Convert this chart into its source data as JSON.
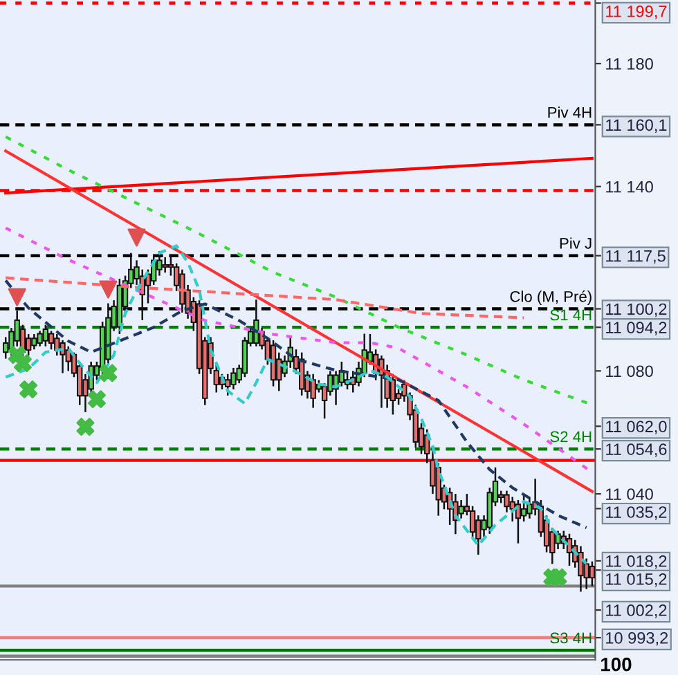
{
  "chart_data": {
    "type": "candlestick",
    "categories": [
      null,
      null,
      null,
      null,
      null,
      null,
      null,
      null,
      null,
      null,
      null,
      null,
      null,
      null,
      null,
      null,
      null,
      null,
      null,
      null,
      null,
      null,
      null,
      null,
      null,
      null,
      null,
      null,
      null,
      null,
      null,
      null,
      null,
      null,
      null,
      null,
      null,
      null,
      null,
      null,
      null,
      null,
      null,
      null,
      null,
      null,
      null,
      null,
      null,
      null,
      null,
      null,
      null,
      null,
      null,
      null,
      null,
      null,
      null,
      null,
      null,
      null,
      null,
      null,
      null,
      null,
      null,
      null,
      null,
      null,
      null,
      null,
      null,
      null,
      null,
      null,
      null,
      null,
      null,
      null,
      null,
      null,
      null,
      null,
      null,
      null,
      null,
      null,
      null,
      null,
      null,
      null,
      null,
      null,
      null,
      null,
      null,
      null,
      null,
      null,
      null,
      null,
      null,
      null
    ],
    "ohlc": [
      [
        11086.1,
        11091,
        11084,
        11089.1
      ],
      [
        11086.8,
        11094,
        11085,
        11092.8
      ],
      [
        11089.8,
        11099.6,
        11088,
        11096.5
      ],
      [
        11093.6,
        11095,
        11084,
        11086.1
      ],
      [
        11090.6,
        11092,
        11085,
        11086.8
      ],
      [
        11088.3,
        11092,
        11087,
        11090.6
      ],
      [
        11089.1,
        11093,
        11088,
        11092.1
      ],
      [
        11089.8,
        11095,
        11088,
        11093.6
      ],
      [
        11092.1,
        11093,
        11087,
        11089.1
      ],
      [
        11090.6,
        11092,
        11085,
        11086.8
      ],
      [
        11089.1,
        11090,
        11079.3,
        11085.3
      ],
      [
        11086.8,
        11088,
        11080,
        11083.1
      ],
      [
        11085.3,
        11086,
        11078,
        11079.3
      ],
      [
        11081.6,
        11083,
        11068.9,
        11071.9
      ],
      [
        11077.1,
        11079,
        11066.6,
        11071.9
      ],
      [
        11074.1,
        11083,
        11072,
        11081.6
      ],
      [
        11078.6,
        11083,
        11077,
        11081.6
      ],
      [
        11080.8,
        11096,
        11079,
        11094.3
      ],
      [
        11083.8,
        11102,
        11082,
        11097.3
      ],
      [
        11094.3,
        11103,
        11093,
        11101.0
      ],
      [
        11094.3,
        11110,
        11092,
        11107.8
      ],
      [
        11101.0,
        11111,
        11099,
        11109.3
      ],
      [
        11108.5,
        11118.4,
        11107,
        11113.0
      ],
      [
        11110.0,
        11116,
        11108,
        11113.8
      ],
      [
        11110.8,
        11113,
        11096.5,
        11104.8
      ],
      [
        11111.5,
        11113,
        11102,
        11107.8
      ],
      [
        11109.3,
        11118,
        11108,
        11116.0
      ],
      [
        11113.0,
        11119,
        11111,
        11116.0
      ],
      [
        11114.5,
        11117,
        11112,
        11113.8
      ],
      [
        11114.5,
        11118,
        11111,
        11113.8
      ],
      [
        11113.8,
        11115,
        11106,
        11107.8
      ],
      [
        11111.5,
        11113,
        11099,
        11101.8
      ],
      [
        11106.3,
        11108,
        11097,
        11098.8
      ],
      [
        11102.6,
        11104,
        11093,
        11095.8
      ],
      [
        11101.8,
        11103,
        11079,
        11080.8
      ],
      [
        11089.8,
        11091,
        11068.9,
        11071.1
      ],
      [
        11089.1,
        11091,
        11079,
        11080.8
      ],
      [
        11080.1,
        11082,
        11073,
        11075.6
      ],
      [
        11077.9,
        11079,
        11074,
        11075.6
      ],
      [
        11077.1,
        11079,
        11072,
        11074.9
      ],
      [
        11075.6,
        11081,
        11074,
        11079.3
      ],
      [
        11077.1,
        11082,
        11076,
        11080.8
      ],
      [
        11079.3,
        11091,
        11078,
        11089.8
      ],
      [
        11089.1,
        11094,
        11088,
        11092.8
      ],
      [
        11089.1,
        11103.2,
        11088,
        11096.5
      ],
      [
        11092.8,
        11094,
        11087,
        11088.3
      ],
      [
        11089.8,
        11091,
        11082,
        11083.8
      ],
      [
        11088.3,
        11090,
        11075,
        11077.1
      ],
      [
        11083.8,
        11086,
        11073.5,
        11077.1
      ],
      [
        11079.3,
        11085,
        11078,
        11083.1
      ],
      [
        11083.1,
        11091,
        11081,
        11087.6
      ],
      [
        11084.6,
        11087,
        11079,
        11080.8
      ],
      [
        11083.8,
        11086,
        11072,
        11074.1
      ],
      [
        11078.6,
        11080,
        11071,
        11073.4
      ],
      [
        11077.1,
        11079,
        11068,
        11071.1
      ],
      [
        11074.1,
        11077,
        11073,
        11075.6
      ],
      [
        11074.9,
        11076,
        11064.5,
        11070.4
      ],
      [
        11073.4,
        11080,
        11072,
        11078.6
      ],
      [
        11074.1,
        11080,
        11068.9,
        11078.6
      ],
      [
        11076.3,
        11083,
        11075,
        11080.1
      ],
      [
        11075.6,
        11080,
        11074,
        11077.1
      ],
      [
        11077.9,
        11080,
        11073,
        11075.6
      ],
      [
        11076.3,
        11083,
        11075,
        11080.8
      ],
      [
        11079.3,
        11092.1,
        11078,
        11086.8
      ],
      [
        11083.1,
        11092,
        11082,
        11086.1
      ],
      [
        11085.3,
        11087,
        11077,
        11079.3
      ],
      [
        11083.8,
        11085,
        11068,
        11078.6
      ],
      [
        11080.1,
        11082,
        11068,
        11071.1
      ],
      [
        11077.1,
        11079,
        11065.8,
        11070.4
      ],
      [
        11072.6,
        11074,
        11069,
        11071.1
      ],
      [
        11075.6,
        11077,
        11070,
        11071.9
      ],
      [
        11071.9,
        11073,
        11064,
        11065.8
      ],
      [
        11067.3,
        11069,
        11055,
        11056.9
      ],
      [
        11061.3,
        11063,
        11053,
        11055.4
      ],
      [
        11059.1,
        11061,
        11050,
        11053.1
      ],
      [
        11050.9,
        11054,
        11040,
        11042.6
      ],
      [
        11048.6,
        11050,
        11032.9,
        11038.1
      ],
      [
        11041.9,
        11043,
        11035,
        11037.4
      ],
      [
        11040.4,
        11042,
        11029.9,
        11035.1
      ],
      [
        11037.4,
        11040,
        11026.9,
        11031.4
      ],
      [
        11033.6,
        11038,
        11032,
        11035.9
      ],
      [
        11035.9,
        11040,
        11033,
        11034.4
      ],
      [
        11034.4,
        11036,
        11026,
        11027.6
      ],
      [
        11031.4,
        11033,
        11020.2,
        11025.4
      ],
      [
        11028.4,
        11033,
        11026,
        11031.4
      ],
      [
        11029.1,
        11042,
        11027,
        11040.4
      ],
      [
        11037.4,
        11048.6,
        11036,
        11044.1
      ],
      [
        11039.7,
        11041,
        11037,
        11038.9
      ],
      [
        11039.7,
        11041,
        11034,
        11035.9
      ],
      [
        11037.4,
        11039,
        11031,
        11035.1
      ],
      [
        11036.6,
        11038,
        11023.9,
        11032.1
      ],
      [
        11032.9,
        11040,
        11031,
        11035.1
      ],
      [
        11033.6,
        11039,
        11032,
        11036.6
      ],
      [
        11037.4,
        11044.9,
        11033,
        11035.1
      ],
      [
        11035.9,
        11038,
        11026,
        11027.6
      ],
      [
        11031.4,
        11033,
        11021,
        11023.1
      ],
      [
        11027.6,
        11029,
        11017.2,
        11020.9
      ],
      [
        11023.9,
        11028,
        11022,
        11026.9
      ],
      [
        11026.2,
        11028,
        11022,
        11023.9
      ],
      [
        11025.4,
        11027,
        11016.6,
        11020.9
      ],
      [
        11023.1,
        11025,
        11016,
        11017.9
      ],
      [
        11020.9,
        11023,
        11008.2,
        11013.4
      ],
      [
        11017.2,
        11019,
        11009,
        11012.7
      ],
      [
        11016.4,
        11018,
        11010,
        11012.7
      ]
    ],
    "colors": [
      "#56d356",
      "#56d356",
      "#56d356",
      "#e46f6f",
      "#e46f6f",
      "#56d356",
      "#56d356",
      "#56d356",
      "#e46f6f",
      "#e46f6f",
      "#e46f6f",
      "#e46f6f",
      "#e46f6f",
      "#e46f6f",
      "#e46f6f",
      "#56d356",
      "#56d356",
      "#56d356",
      "#56d356",
      "#56d356",
      "#56d356",
      "#56d356",
      "#56d356",
      "#56d356",
      "#e46f6f",
      "#e46f6f",
      "#56d356",
      "#56d356",
      "#e46f6f",
      "#e46f6f",
      "#e46f6f",
      "#e46f6f",
      "#e46f6f",
      "#e46f6f",
      "#e46f6f",
      "#e46f6f",
      "#e46f6f",
      "#e46f6f",
      "#e46f6f",
      "#e46f6f",
      "#56d356",
      "#56d356",
      "#56d356",
      "#56d356",
      "#56d356",
      "#e46f6f",
      "#e46f6f",
      "#e46f6f",
      "#e46f6f",
      "#56d356",
      "#56d356",
      "#e46f6f",
      "#e46f6f",
      "#e46f6f",
      "#e46f6f",
      "#56d356",
      "#e46f6f",
      "#56d356",
      "#56d356",
      "#56d356",
      "#56d356",
      "#e46f6f",
      "#56d356",
      "#56d356",
      "#56d356",
      "#e46f6f",
      "#e46f6f",
      "#e46f6f",
      "#e46f6f",
      "#e46f6f",
      "#e46f6f",
      "#e46f6f",
      "#e46f6f",
      "#e46f6f",
      "#e46f6f",
      "#e46f6f",
      "#e46f6f",
      "#e46f6f",
      "#e46f6f",
      "#e46f6f",
      "#56d356",
      "#e46f6f",
      "#e46f6f",
      "#e46f6f",
      "#56d356",
      "#56d356",
      "#56d356",
      "#e46f6f",
      "#e46f6f",
      "#e46f6f",
      "#e46f6f",
      "#56d356",
      "#56d356",
      "#e46f6f",
      "#e46f6f",
      "#e46f6f",
      "#e46f6f",
      "#56d356",
      "#e46f6f",
      "#e46f6f",
      "#e46f6f",
      "#e46f6f",
      "#e46f6f",
      "#e46f6f"
    ],
    "series": [
      {
        "type": "line",
        "color": "#ff0000",
        "line_style": "solid",
        "values": [
          11137.9,
          null,
          null,
          null,
          null,
          null,
          null,
          null,
          null,
          null,
          null,
          null,
          null,
          null,
          null,
          null,
          null,
          null,
          null,
          null,
          null,
          null,
          null,
          null,
          null,
          null,
          null,
          null,
          null,
          null,
          null,
          null,
          null,
          null,
          null,
          null,
          null,
          null,
          null,
          null,
          null,
          null,
          null,
          null,
          null,
          null,
          null,
          null,
          null,
          null,
          null,
          null,
          null,
          null,
          null,
          null,
          null,
          null,
          null,
          null,
          null,
          null,
          null,
          null,
          null,
          null,
          null,
          null,
          null,
          null,
          null,
          null,
          null,
          null,
          null,
          null,
          null,
          null,
          null,
          null,
          null,
          null,
          null,
          null,
          null,
          null,
          null,
          null,
          null,
          null,
          null,
          null,
          null,
          null,
          null,
          null,
          null,
          null,
          null,
          null,
          null,
          null,
          null,
          11149.2
        ]
      },
      {
        "type": "line",
        "color": "#ff3333",
        "line_style": "solid",
        "values": [
          11151.6,
          null,
          null,
          null,
          null,
          null,
          null,
          null,
          null,
          null,
          null,
          null,
          null,
          null,
          null,
          null,
          null,
          null,
          null,
          null,
          null,
          null,
          null,
          null,
          null,
          null,
          null,
          null,
          null,
          null,
          null,
          null,
          null,
          null,
          null,
          null,
          null,
          null,
          null,
          null,
          null,
          null,
          null,
          null,
          null,
          null,
          null,
          null,
          null,
          null,
          null,
          null,
          null,
          null,
          null,
          null,
          null,
          null,
          null,
          null,
          null,
          null,
          null,
          null,
          null,
          null,
          null,
          null,
          null,
          null,
          null,
          null,
          null,
          null,
          null,
          null,
          null,
          null,
          null,
          null,
          null,
          null,
          null,
          null,
          null,
          null,
          null,
          null,
          null,
          null,
          null,
          null,
          null,
          null,
          null,
          null,
          null,
          null,
          null,
          null,
          null,
          null,
          null,
          11040.8
        ]
      },
      {
        "type": "line",
        "color": "#33dd33",
        "line_style": "dotted",
        "values": [
          11156.2,
          null,
          null,
          null,
          null,
          null,
          null,
          null,
          null,
          null,
          null,
          11145.4,
          null,
          null,
          null,
          null,
          null,
          null,
          null,
          null,
          null,
          null,
          null,
          null,
          null,
          null,
          null,
          null,
          null,
          null,
          null,
          null,
          null,
          11125.6,
          null,
          null,
          null,
          null,
          null,
          null,
          null,
          null,
          null,
          null,
          null,
          null,
          null,
          11112.1,
          null,
          null,
          null,
          null,
          null,
          null,
          null,
          null,
          null,
          null,
          11104.0,
          null,
          null,
          null,
          null,
          null,
          null,
          null,
          null,
          null,
          null,
          11094.2,
          null,
          null,
          null,
          null,
          null,
          null,
          null,
          null,
          null,
          null,
          null,
          11085.2,
          null,
          null,
          null,
          null,
          null,
          null,
          null,
          null,
          null,
          11077.1,
          null,
          null,
          null,
          null,
          null,
          null,
          null,
          null,
          null,
          null,
          null,
          11069.0
        ]
      },
      {
        "type": "line",
        "color": "#ee55ee",
        "line_style": "dotted",
        "values": [
          11126.5,
          null,
          null,
          null,
          null,
          null,
          null,
          null,
          null,
          null,
          null,
          11116.2,
          null,
          null,
          null,
          null,
          null,
          null,
          null,
          null,
          null,
          null,
          null,
          11106.3,
          null,
          null,
          null,
          null,
          null,
          null,
          null,
          null,
          null,
          null,
          null,
          11096.4,
          null,
          null,
          null,
          null,
          null,
          null,
          null,
          null,
          null,
          null,
          null,
          11091.9,
          null,
          null,
          null,
          null,
          null,
          null,
          null,
          null,
          null,
          null,
          11089.2,
          null,
          null,
          null,
          null,
          null,
          11089.2,
          null,
          null,
          null,
          null,
          11087.4,
          null,
          null,
          null,
          null,
          null,
          null,
          null,
          null,
          null,
          null,
          null,
          11074.8,
          null,
          null,
          null,
          null,
          null,
          null,
          null,
          null,
          null,
          11062.7,
          null,
          null,
          null,
          null,
          null,
          null,
          null,
          null,
          null,
          null,
          null,
          11047.0
        ]
      },
      {
        "type": "line",
        "color": "#ff6666",
        "line_style": "dashed",
        "values": [
          11110.3,
          null,
          null,
          null,
          null,
          null,
          null,
          null,
          null,
          null,
          null,
          null,
          null,
          null,
          null,
          null,
          null,
          null,
          null,
          null,
          null,
          null,
          null,
          11107.2,
          null,
          null,
          null,
          null,
          null,
          null,
          null,
          null,
          null,
          null,
          null,
          null,
          null,
          null,
          null,
          null,
          null,
          null,
          null,
          null,
          null,
          null,
          null,
          null,
          null,
          null,
          null,
          null,
          null,
          null,
          null,
          null,
          null,
          null,
          11103.2,
          null,
          null,
          null,
          null,
          null,
          null,
          null,
          null,
          null,
          null,
          null,
          null,
          null,
          null,
          11098.7,
          null,
          null,
          null,
          null,
          null,
          null,
          null,
          null,
          null,
          null,
          null,
          null,
          null,
          null,
          null,
          null,
          null,
          11097.3,
          null,
          null,
          null,
          null,
          null,
          null,
          null,
          null,
          null,
          null,
          null,
          null
        ]
      },
      {
        "type": "line",
        "color": "#1f3864",
        "line_style": "dashed",
        "values": [
          11109.4,
          null,
          null,
          null,
          11100.5,
          null,
          null,
          null,
          null,
          null,
          null,
          11089.7,
          null,
          null,
          null,
          11086.1,
          null,
          null,
          11088.3,
          null,
          null,
          null,
          null,
          null,
          null,
          null,
          11094.2,
          null,
          null,
          null,
          null,
          11099.6,
          null,
          null,
          null,
          11101.8,
          null,
          null,
          null,
          null,
          null,
          11096.4,
          null,
          null,
          null,
          null,
          11090.6,
          null,
          null,
          null,
          null,
          11083.8,
          null,
          null,
          null,
          null,
          null,
          null,
          11080.2,
          null,
          null,
          null,
          null,
          null,
          null,
          null,
          null,
          null,
          null,
          11077.1,
          null,
          null,
          null,
          null,
          null,
          null,
          11070.4,
          null,
          null,
          null,
          null,
          11056.9,
          null,
          null,
          null,
          11047.9,
          null,
          null,
          null,
          11042.0,
          null,
          null,
          null,
          11037.5,
          null,
          null,
          null,
          11033.0,
          null,
          null,
          null,
          null,
          11029.0,
          null
        ]
      },
      {
        "type": "line",
        "color": "#33cccc",
        "line_style": "dashed",
        "values": [
          11078.0,
          null,
          null,
          null,
          11080.7,
          null,
          null,
          11086.1,
          null,
          null,
          null,
          11087.4,
          null,
          11082.5,
          null,
          null,
          11076.2,
          null,
          null,
          11085.2,
          null,
          11098.7,
          null,
          11106.3,
          null,
          null,
          null,
          11118.4,
          null,
          null,
          11120.7,
          null,
          11115.3,
          null,
          11106.3,
          null,
          11087.0,
          null,
          null,
          11073.5,
          null,
          null,
          11069.4,
          null,
          11076.2,
          null,
          11083.8,
          null,
          null,
          null,
          11080.7,
          null,
          null,
          null,
          null,
          11075.7,
          null,
          null,
          11074.8,
          null,
          null,
          null,
          11078.0,
          null,
          11080.2,
          null,
          null,
          11078.0,
          null,
          null,
          null,
          11071.7,
          null,
          11064.5,
          null,
          11055.5,
          11047.9,
          null,
          null,
          11033.0,
          null,
          null,
          null,
          11023.2,
          null,
          null,
          11029.9,
          null,
          null,
          null,
          null,
          11037.5,
          null,
          null,
          11035.3,
          null,
          11028.5,
          null,
          null,
          null,
          null,
          null,
          11017.3,
          null
        ]
      },
      {
        "type": "scatter",
        "color": "#44bb44",
        "marker": "cross",
        "values": [
          null,
          null,
          11085.2,
          11082.5,
          11074.0,
          null,
          null,
          null,
          null,
          null,
          null,
          null,
          null,
          null,
          11061.8,
          null,
          11070.8,
          null,
          11079.3,
          null,
          null,
          null,
          null,
          null,
          null,
          null,
          null,
          null,
          null,
          null,
          null,
          null,
          null,
          null,
          null,
          null,
          null,
          null,
          null,
          null,
          null,
          null,
          null,
          null,
          null,
          null,
          null,
          null,
          null,
          null,
          null,
          null,
          null,
          null,
          null,
          null,
          null,
          null,
          null,
          null,
          null,
          null,
          null,
          null,
          null,
          null,
          null,
          null,
          null,
          null,
          null,
          null,
          null,
          null,
          null,
          null,
          null,
          null,
          null,
          null,
          null,
          null,
          null,
          null,
          null,
          null,
          null,
          null,
          null,
          null,
          null,
          null,
          null,
          null,
          null,
          null,
          11012.8,
          11012.8,
          null,
          null,
          null,
          null,
          null,
          null
        ]
      },
      {
        "type": "scatter",
        "color": "#e05050",
        "marker": "triangle",
        "values": [
          null,
          null,
          11104.0,
          null,
          null,
          null,
          null,
          null,
          null,
          null,
          null,
          null,
          null,
          null,
          null,
          null,
          null,
          null,
          11106.5,
          null,
          null,
          null,
          null,
          11123.4,
          null,
          null,
          null,
          null,
          null,
          null,
          null,
          null,
          null,
          null,
          null,
          null,
          null,
          null,
          null,
          null,
          null,
          null,
          null,
          null,
          null,
          null,
          null,
          null,
          null,
          null,
          null,
          null,
          null,
          null,
          null,
          null,
          null,
          null,
          null,
          null,
          null,
          null,
          null,
          null,
          null,
          null,
          null,
          null,
          null,
          null,
          null,
          null,
          null,
          null,
          null,
          null,
          null,
          null,
          null,
          null,
          null,
          null,
          null,
          null,
          null,
          null,
          null,
          null,
          null,
          null,
          null,
          null,
          null,
          null,
          null,
          null,
          null,
          null,
          null,
          null,
          null,
          null,
          null,
          null
        ]
      }
    ],
    "ref_lines": [
      {
        "axis": "y",
        "value": 11199.7,
        "color": "#ff0000",
        "line_style": "dotted"
      },
      {
        "axis": "y",
        "value": 11160.1,
        "label": "Piv 4H",
        "color": "#000000",
        "line_style": "dashed"
      },
      {
        "axis": "y",
        "value": 11138.7,
        "color": "#ff0000",
        "line_style": "dashed"
      },
      {
        "axis": "y",
        "value": 11117.5,
        "label": "Piv J",
        "color": "#000000",
        "line_style": "dashed"
      },
      {
        "axis": "y",
        "value": 11100.2,
        "label": "Clo (M, Pré)",
        "color": "#000000",
        "line_style": "dashed"
      },
      {
        "axis": "y",
        "value": 11094.2,
        "label": "S1 4H",
        "color": "#008000",
        "line_style": "dashed"
      },
      {
        "axis": "y",
        "value": 11054.6,
        "label": "S2 4H",
        "color": "#008000",
        "line_style": "dashed"
      },
      {
        "axis": "y",
        "value": 11050.9,
        "color": "#ff0000",
        "line_style": "solid"
      },
      {
        "axis": "y",
        "value": 11010.0,
        "color": "#808080",
        "line_style": "solid"
      },
      {
        "axis": "y",
        "value": 10993.2,
        "color": "#f08080",
        "line_style": "solid"
      },
      {
        "axis": "y",
        "value": 10989.1,
        "label": "S3 4H",
        "color": "#007000",
        "line_style": "solid"
      },
      {
        "axis": "y",
        "value": 10987.2,
        "color": "#808080",
        "line_style": "solid"
      }
    ],
    "ylim": [
      10986.0,
      11200.7
    ],
    "yticks": [
      {
        "value": 11199.7,
        "label": "11 199,7"
      },
      {
        "value": 11180,
        "label": "11 180"
      },
      {
        "value": 11160.1,
        "label": "11 160,1"
      },
      {
        "value": 11140,
        "label": "11 140"
      },
      {
        "value": 11117.5,
        "label": "11 117,5"
      },
      {
        "value": 11100.2,
        "label": "11 100,2"
      },
      {
        "value": 11094.2,
        "label": "11 094,2"
      },
      {
        "value": 11080,
        "label": "11 080"
      },
      {
        "value": 11062.0,
        "label": "11 062,0"
      },
      {
        "value": 11054.6,
        "label": "11 054,6"
      },
      {
        "value": 11040,
        "label": "11 040"
      },
      {
        "value": 11035.2,
        "label": "11 035,2"
      },
      {
        "value": 11018.2,
        "label": "11 018,2"
      },
      {
        "value": 11015.2,
        "label": "11 015,2"
      },
      {
        "value": 11002.2,
        "label": "11 002,2"
      },
      {
        "value": 10993.2,
        "label": "10 993,2"
      }
    ],
    "tick_labels": "y",
    "annotations": [
      "100"
    ]
  }
}
